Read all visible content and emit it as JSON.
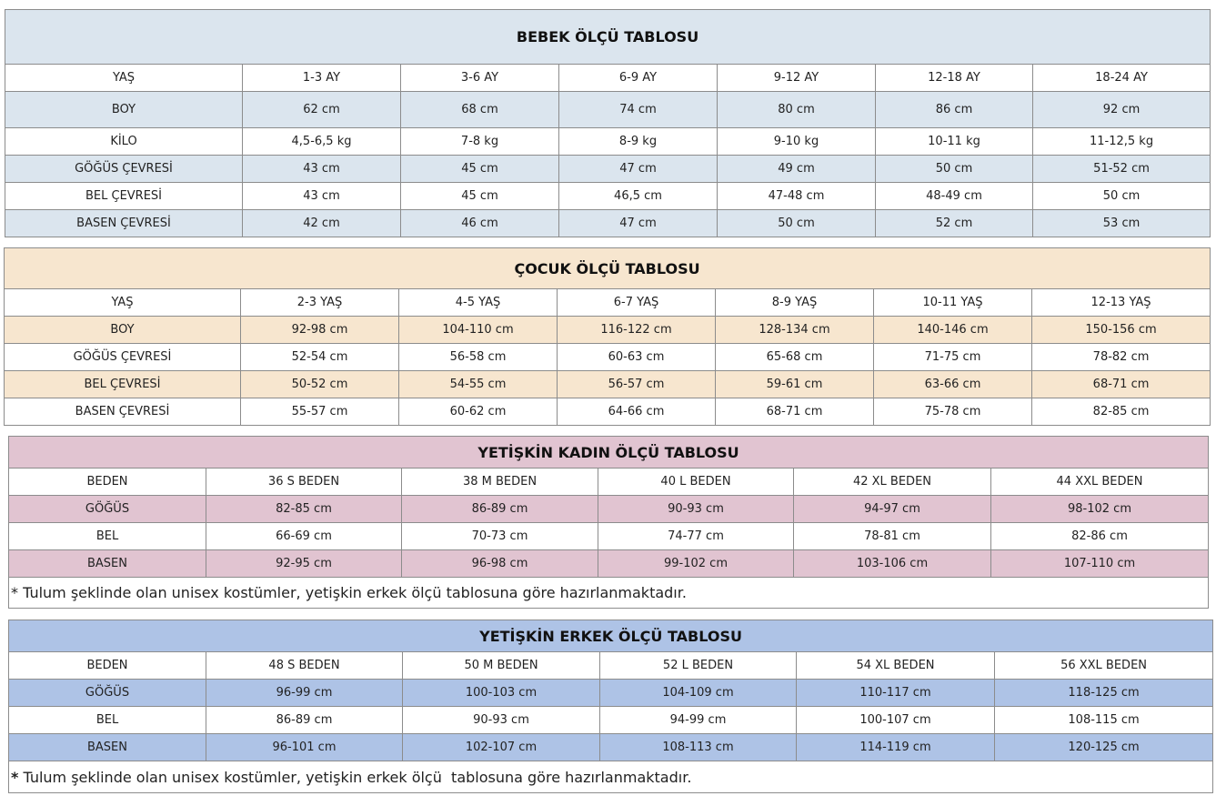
{
  "tables": [
    {
      "title": "BEBEK ÖLÇÜ TABLOSU",
      "rows": [
        [
          "YAŞ",
          "1-3 AY",
          "3-6 AY",
          "6-9 AY",
          "9-12 AY",
          "12-18 AY",
          "18-24 AY"
        ],
        [
          "BOY",
          "62 cm",
          "68 cm",
          "74 cm",
          "80 cm",
          "86 cm",
          "92 cm"
        ],
        [
          "KİLO",
          "4,5-6,5 kg",
          "7-8 kg",
          "8-9 kg",
          "9-10 kg",
          "10-11 kg",
          "11-12,5 kg"
        ],
        [
          "GÖĞÜS ÇEVRESİ",
          "43 cm",
          "45 cm",
          "47 cm",
          "49 cm",
          "50 cm",
          "51-52 cm"
        ],
        [
          "BEL ÇEVRESİ",
          "43 cm",
          "45 cm",
          "46,5 cm",
          "47-48 cm",
          "48-49 cm",
          "50 cm"
        ],
        [
          "BASEN ÇEVRESİ",
          "42 cm",
          "46 cm",
          "47 cm",
          "50 cm",
          "52 cm",
          "53 cm"
        ]
      ]
    },
    {
      "title": "ÇOCUK ÖLÇÜ TABLOSU",
      "rows": [
        [
          "YAŞ",
          "2-3 YAŞ",
          "4-5 YAŞ",
          "6-7 YAŞ",
          "8-9 YAŞ",
          "10-11 YAŞ",
          "12-13 YAŞ"
        ],
        [
          "BOY",
          "92-98 cm",
          "104-110 cm",
          "116-122 cm",
          "128-134 cm",
          "140-146 cm",
          "150-156 cm"
        ],
        [
          "GÖĞÜS ÇEVRESİ",
          "52-54 cm",
          "56-58 cm",
          "60-63 cm",
          "65-68 cm",
          "71-75 cm",
          "78-82 cm"
        ],
        [
          "BEL ÇEVRESİ",
          "50-52 cm",
          "54-55 cm",
          "56-57 cm",
          "59-61 cm",
          "63-66 cm",
          "68-71 cm"
        ],
        [
          "BASEN ÇEVRESİ",
          "55-57 cm",
          "60-62 cm",
          "64-66 cm",
          "68-71 cm",
          "75-78 cm",
          "82-85 cm"
        ]
      ]
    },
    {
      "title": "YETİŞKİN KADIN ÖLÇÜ TABLOSU",
      "rows": [
        [
          "BEDEN",
          "36 S BEDEN",
          "38 M BEDEN",
          "40 L BEDEN",
          "42 XL BEDEN",
          "44 XXL BEDEN"
        ],
        [
          "GÖĞÜS",
          "82-85 cm",
          "86-89 cm",
          "90-93 cm",
          "94-97 cm",
          "98-102 cm"
        ],
        [
          "BEL",
          "66-69 cm",
          "70-73 cm",
          "74-77 cm",
          "78-81 cm",
          "82-86 cm"
        ],
        [
          "BASEN",
          "92-95 cm",
          "96-98 cm",
          "99-102 cm",
          "103-106 cm",
          "107-110 cm"
        ]
      ],
      "note_mark": "*",
      "note": "Tulum şeklinde olan unisex kostümler, yetişkin erkek ölçü tablosuna göre hazırlanmaktadır."
    },
    {
      "title": "YETİŞKİN ERKEK ÖLÇÜ TABLOSU",
      "rows": [
        [
          "BEDEN",
          "48 S BEDEN",
          "50 M BEDEN",
          "52 L BEDEN",
          "54 XL BEDEN",
          "56 XXL BEDEN"
        ],
        [
          "GÖĞÜS",
          "96-99 cm",
          "100-103 cm",
          "104-109 cm",
          "110-117 cm",
          "118-125 cm"
        ],
        [
          "BEL",
          "86-89 cm",
          "90-93 cm",
          "94-99 cm",
          "100-107 cm",
          "108-115 cm"
        ],
        [
          "BASEN",
          "96-101 cm",
          "102-107 cm",
          "108-113 cm",
          "114-119 cm",
          "120-125 cm"
        ]
      ],
      "note_mark": "*",
      "note": "Tulum şeklinde olan unisex kostümler, yetişkin erkek ölçü  tablosuna göre hazırlanmaktadır."
    }
  ]
}
